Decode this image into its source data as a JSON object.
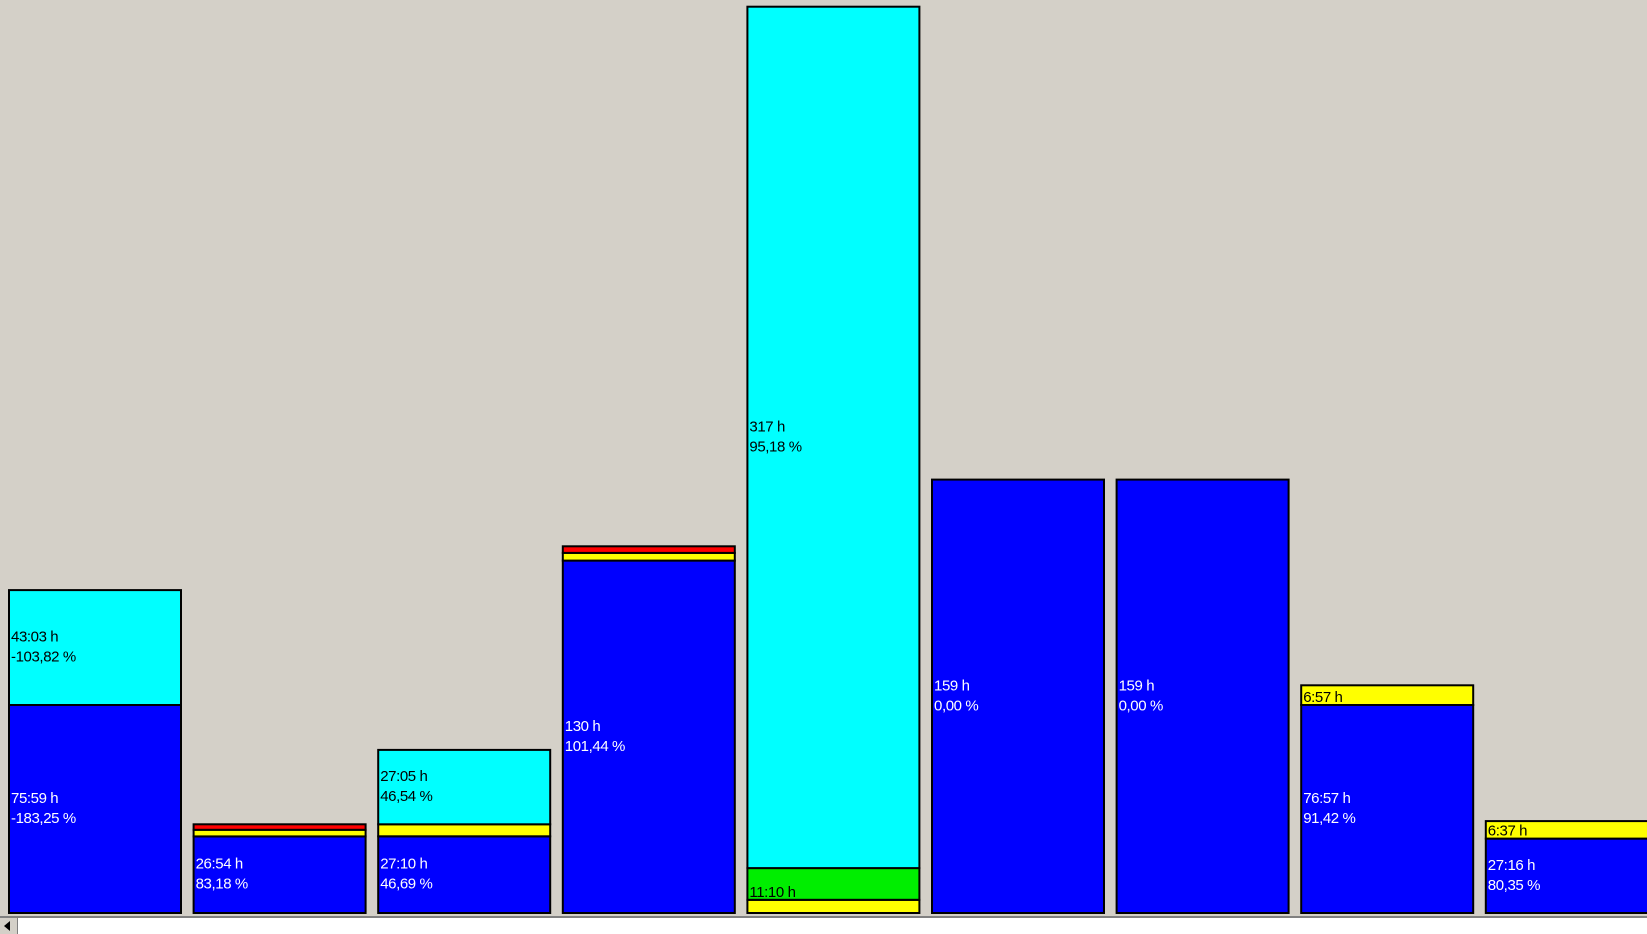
{
  "chart_data": {
    "type": "bar",
    "stacked": true,
    "bars": [
      {
        "segments": [
          {
            "color": "#0000ff",
            "value": 190,
            "label_lines": [
              "75:59 h",
              "-183,25 %"
            ],
            "label_color": "#ffffff"
          },
          {
            "color": "#00ffff",
            "value": 105,
            "label_lines": [
              "43:03 h",
              "-103,82 %"
            ],
            "label_color": "#000000"
          }
        ]
      },
      {
        "segments": [
          {
            "color": "#0000ff",
            "value": 70,
            "label_lines": [
              "26:54 h",
              "83,18 %"
            ],
            "label_color": "#ffffff"
          },
          {
            "color": "#ffff00",
            "value": 6,
            "label_lines": [],
            "label_color": "#000000"
          },
          {
            "color": "#ff0000",
            "value": 5,
            "label_lines": [],
            "label_color": "#000000"
          }
        ]
      },
      {
        "segments": [
          {
            "color": "#0000ff",
            "value": 70,
            "label_lines": [
              "27:10 h",
              "46,69 %"
            ],
            "label_color": "#ffffff"
          },
          {
            "color": "#ffff00",
            "value": 11,
            "label_lines": [],
            "label_color": "#000000"
          },
          {
            "color": "#00ffff",
            "value": 68,
            "label_lines": [
              "27:05 h",
              "46,54 %"
            ],
            "label_color": "#000000"
          }
        ]
      },
      {
        "segments": [
          {
            "color": "#0000ff",
            "value": 322,
            "label_lines": [
              "130 h",
              "101,44 %"
            ],
            "label_color": "#ffffff"
          },
          {
            "color": "#ffff00",
            "value": 7,
            "label_lines": [],
            "label_color": "#000000"
          },
          {
            "color": "#ff0000",
            "value": 6,
            "label_lines": [],
            "label_color": "#000000"
          }
        ]
      },
      {
        "segments": [
          {
            "color": "#ffff00",
            "value": 12,
            "label_lines": [],
            "label_color": "#000000"
          },
          {
            "color": "#00ee00",
            "value": 29,
            "label_lines": [
              "11:10 h"
            ],
            "label_color": "#000000"
          },
          {
            "color": "#00ffff",
            "value": 787,
            "label_lines": [
              "317 h",
              "95,18 %"
            ],
            "label_color": "#000000"
          }
        ]
      },
      {
        "segments": [
          {
            "color": "#0000ff",
            "value": 396,
            "label_lines": [
              "159 h",
              "0,00 %"
            ],
            "label_color": "#ffffff"
          }
        ]
      },
      {
        "segments": [
          {
            "color": "#0000ff",
            "value": 396,
            "label_lines": [
              "159 h",
              "0,00 %"
            ],
            "label_color": "#ffffff"
          }
        ]
      },
      {
        "segments": [
          {
            "color": "#0000ff",
            "value": 190,
            "label_lines": [
              "76:57 h",
              "91,42 %"
            ],
            "label_color": "#ffffff"
          },
          {
            "color": "#ffff00",
            "value": 18,
            "label_lines": [
              "6:57 h"
            ],
            "label_color": "#000000"
          }
        ]
      },
      {
        "segments": [
          {
            "color": "#0000ff",
            "value": 68,
            "label_lines": [
              "27:16 h",
              "80,35 %"
            ],
            "label_color": "#ffffff"
          },
          {
            "color": "#ffff00",
            "value": 16,
            "label_lines": [
              "6:37 h"
            ],
            "label_color": "#000000"
          }
        ]
      }
    ],
    "ylim": [
      0,
      830
    ],
    "grid": false,
    "legend": "none"
  }
}
